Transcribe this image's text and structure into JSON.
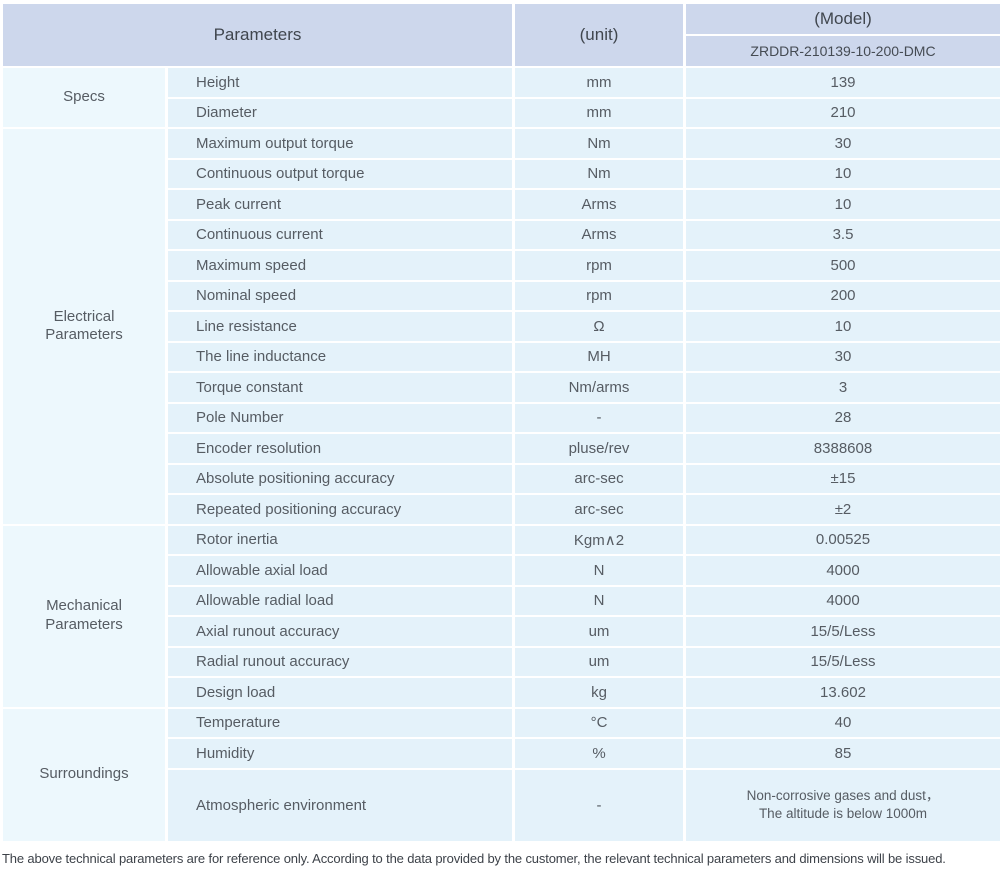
{
  "table": {
    "header": {
      "parameters_label": "Parameters",
      "unit_label": "(unit)",
      "model_label": "(Model)",
      "model_code": "ZRDDR-210139-10-200-DMC"
    },
    "groups": [
      {
        "name": "Specs",
        "rows": [
          {
            "param": "Height",
            "unit": "mm",
            "value": "139"
          },
          {
            "param": "Diameter",
            "unit": "mm",
            "value": "210"
          }
        ]
      },
      {
        "name": "Electrical Parameters",
        "rows": [
          {
            "param": "Maximum output torque",
            "unit": "Nm",
            "value": "30"
          },
          {
            "param": "Continuous output torque",
            "unit": "Nm",
            "value": "10"
          },
          {
            "param": "Peak current",
            "unit": "Arms",
            "value": "10"
          },
          {
            "param": "Continuous current",
            "unit": "Arms",
            "value": "3.5"
          },
          {
            "param": "Maximum speed",
            "unit": "rpm",
            "value": "500"
          },
          {
            "param": "Nominal speed",
            "unit": "rpm",
            "value": "200"
          },
          {
            "param": "Line resistance",
            "unit": "Ω",
            "value": "10"
          },
          {
            "param": "The line inductance",
            "unit": "MH",
            "value": "30"
          },
          {
            "param": "Torque constant",
            "unit": "Nm/arms",
            "value": "3"
          },
          {
            "param": "Pole Number",
            "unit": "-",
            "value": "28"
          },
          {
            "param": "Encoder resolution",
            "unit": "pluse/rev",
            "value": "8388608"
          },
          {
            "param": "Absolute positioning accuracy",
            "unit": "arc-sec",
            "value": "±15"
          },
          {
            "param": "Repeated positioning accuracy",
            "unit": "arc-sec",
            "value": "±2"
          }
        ]
      },
      {
        "name": "Mechanical Parameters",
        "rows": [
          {
            "param": "Rotor inertia",
            "unit": "Kgm∧2",
            "value": "0.00525"
          },
          {
            "param": "Allowable axial load",
            "unit": "N",
            "value": "4000"
          },
          {
            "param": "Allowable radial load",
            "unit": "N",
            "value": "4000"
          },
          {
            "param": "Axial runout accuracy",
            "unit": "um",
            "value": "15/5/Less"
          },
          {
            "param": "Radial runout accuracy",
            "unit": "um",
            "value": "15/5/Less"
          },
          {
            "param": "Design load",
            "unit": "kg",
            "value": "13.602"
          }
        ]
      },
      {
        "name": "Surroundings",
        "rows": [
          {
            "param": "Temperature",
            "unit": "°C",
            "value": "40"
          },
          {
            "param": "Humidity",
            "unit": "%",
            "value": "85"
          },
          {
            "param": "Atmospheric environment",
            "unit": "-",
            "value_lines": [
              "Non-corrosive gases and dust，",
              "The altitude is below 1000m"
            ]
          }
        ]
      }
    ]
  },
  "footer": {
    "note": "The above technical parameters are for reference only. According to the data provided by the customer, the relevant technical parameters and dimensions will be issued."
  },
  "colors": {
    "header_bg": "#cdd7ec",
    "cell_bg": "#e4f2fa",
    "category_bg": "#edf8fd",
    "separator": "#ffffff",
    "text": "#565c63"
  }
}
